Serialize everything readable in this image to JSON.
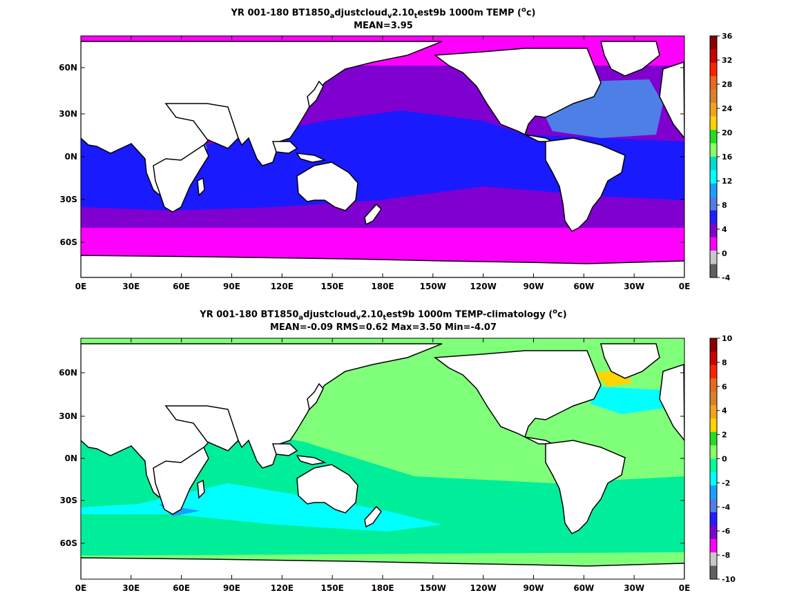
{
  "panel1": {
    "title_pre": "YR 001-180 BT1850",
    "title_a": "a",
    "title_mid1": "djustcloud",
    "title_v": "v",
    "title_mid2": "2.10",
    "title_t": "t",
    "title_mid3": "est9b 1000m TEMP (",
    "title_o": "o",
    "title_end": "c)",
    "stats": "MEAN=3.95",
    "colorbar": {
      "ticks": [
        "36",
        "32",
        "28",
        "24",
        "20",
        "16",
        "12",
        "8",
        "4",
        "0",
        "-4"
      ],
      "colors": [
        "#8b0000",
        "#cc0000",
        "#ff2200",
        "#e86a1a",
        "#d9822b",
        "#f2a51a",
        "#ffd400",
        "#22dd22",
        "#88ff66",
        "#00ddcc",
        "#00ffff",
        "#1aa0ff",
        "#4d7fe6",
        "#2020ff",
        "#8000d0",
        "#ff00ff",
        "#c8c8c8",
        "#606060"
      ]
    }
  },
  "panel2": {
    "title_pre": "YR 001-180 BT1850",
    "title_a": "a",
    "title_mid1": "djustcloud",
    "title_v": "v",
    "title_mid2": "2.10",
    "title_t": "t",
    "title_mid3": "est9b 1000m TEMP-climatology (",
    "title_o": "o",
    "title_end": "c)",
    "stats": "MEAN=-0.09   RMS=0.62   Max=3.50   Min=-4.07",
    "colorbar": {
      "ticks": [
        "10",
        "8",
        "6",
        "4",
        "2",
        "0",
        "-2",
        "-4",
        "-6",
        "-8",
        "-10"
      ],
      "colors": [
        "#8b0000",
        "#cc0000",
        "#ff2200",
        "#e86a1a",
        "#d9822b",
        "#f2a51a",
        "#ffd400",
        "#22dd22",
        "#88ff66",
        "#00ff99",
        "#00ffff",
        "#1aa0ff",
        "#4d7fe6",
        "#2020ff",
        "#8000d0",
        "#ff00ff",
        "#c8c8c8",
        "#606060"
      ]
    }
  },
  "axes": {
    "x_ticks": [
      "0E",
      "30E",
      "60E",
      "90E",
      "120E",
      "150E",
      "180E",
      "150W",
      "120W",
      "90W",
      "60W",
      "30W",
      "0E"
    ],
    "y_ticks": [
      "60N",
      "30N",
      "0N",
      "30S",
      "60S"
    ]
  },
  "colors": {
    "land": "#ffffff",
    "coast": "#000000",
    "p1_arctic": "#ff00ff",
    "p1_cold": "#8000d0",
    "p1_warm": "#1a1aff",
    "p1_atl": "#4d7fe6",
    "p2_base": "#80ff7a",
    "p2_mid": "#00ee99",
    "p2_cyan": "#00ffff",
    "p2_blue": "#1aa0ff"
  }
}
